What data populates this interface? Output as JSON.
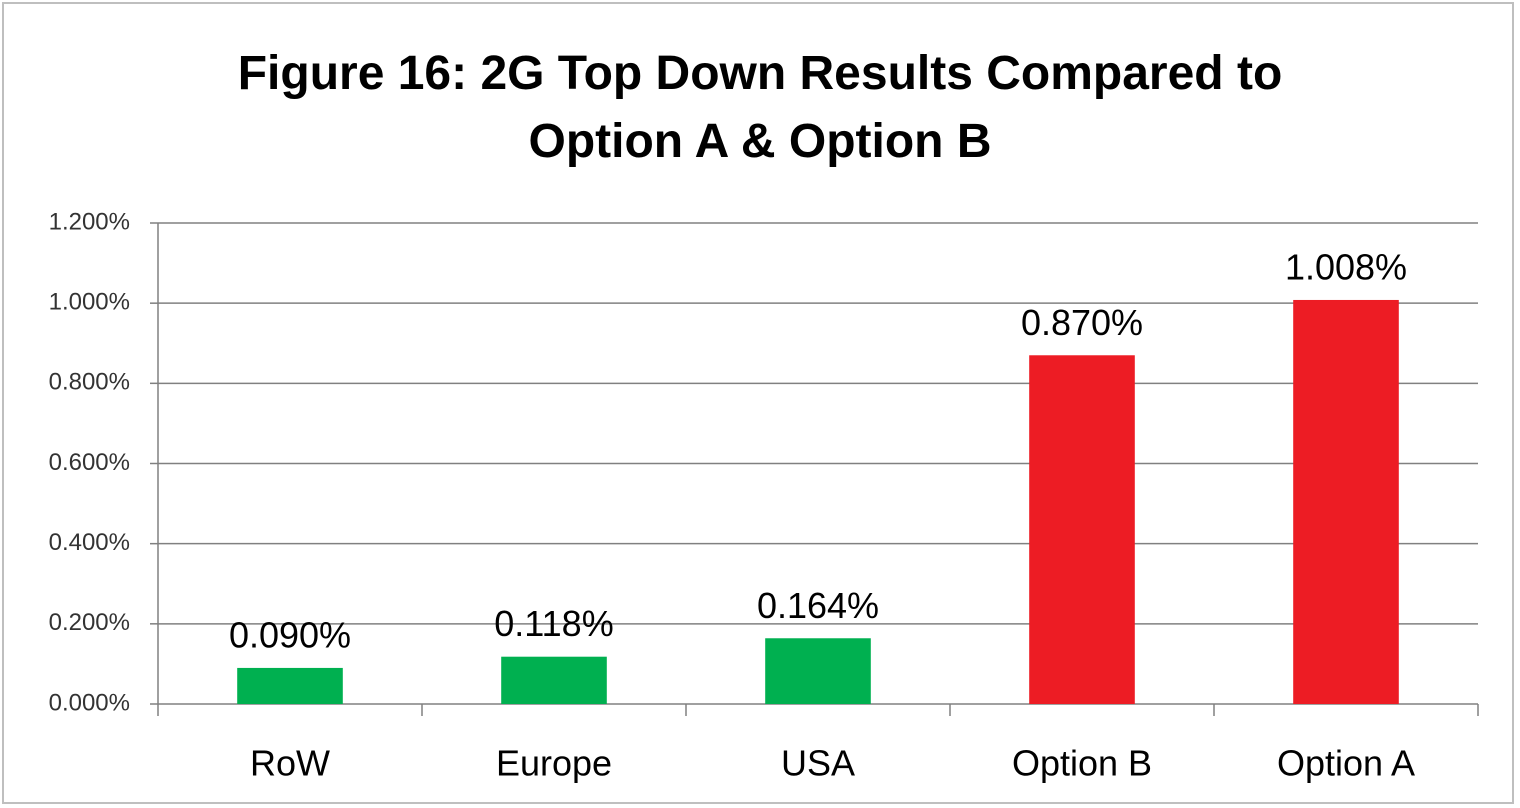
{
  "chart_data": {
    "type": "bar",
    "title": "Figure 16: 2G Top Down Results Compared to Option A & Option B",
    "categories": [
      "RoW",
      "Europe",
      "USA",
      "Option B",
      "Option A"
    ],
    "values": [
      0.09,
      0.118,
      0.164,
      0.87,
      1.008
    ],
    "value_labels": [
      "0.090%",
      "0.118%",
      "0.164%",
      "0.870%",
      "1.008%"
    ],
    "colors": [
      "#00b050",
      "#00b050",
      "#00b050",
      "#ed1c24",
      "#ed1c24"
    ],
    "ylim": [
      0,
      1.2
    ],
    "yticks": [
      {
        "value": 0,
        "label": "0.000%"
      },
      {
        "value": 0.2,
        "label": "0.200%"
      },
      {
        "value": 0.4,
        "label": "0.400%"
      },
      {
        "value": 0.6,
        "label": "0.600%"
      },
      {
        "value": 0.8,
        "label": "0.800%"
      },
      {
        "value": 1.0,
        "label": "1.000%"
      },
      {
        "value": 1.2,
        "label": "1.200%"
      }
    ],
    "grid": true
  }
}
